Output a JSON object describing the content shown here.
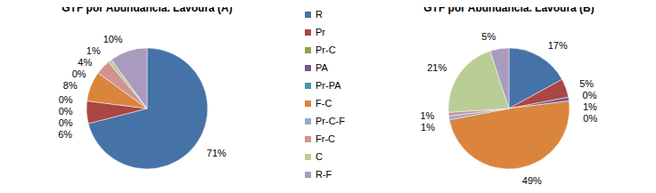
{
  "chart_data": [
    {
      "type": "pie",
      "title": "GTF por Abundância. Lavoura (A)",
      "categories": [
        "R",
        "Pr",
        "Pr-C",
        "PA",
        "Pr-PA",
        "F-C",
        "Pr-C-F",
        "Fr-C",
        "C",
        "R-F"
      ],
      "values": [
        71,
        6,
        0,
        0,
        0,
        8,
        0,
        4,
        1,
        10
      ],
      "value_labels": [
        "71%",
        "6%",
        "0%",
        "0%",
        "0%",
        "8%",
        "0%",
        "4%",
        "1%",
        "10%"
      ],
      "colors": [
        "#4572a7",
        "#aa4643",
        "#89a54e",
        "#71588f",
        "#4198af",
        "#db843d",
        "#93a9cf",
        "#d19392",
        "#b9cd96",
        "#a99bbd"
      ],
      "data_labels": true,
      "legend": "right"
    },
    {
      "type": "pie",
      "title": "GTF por Abundância. Lavoura (B)",
      "categories": [
        "R",
        "Pr",
        "Pr-C",
        "PA",
        "Pr-PA",
        "F-C",
        "Pr-C-F",
        "Fr-C",
        "C",
        "R-F"
      ],
      "values": [
        17,
        5,
        0,
        1,
        0,
        49,
        1,
        1,
        21,
        5
      ],
      "value_labels": [
        "17%",
        "5%",
        "0%",
        "1%",
        "0%",
        "49%",
        "1%",
        "1%",
        "21%",
        "5%"
      ],
      "colors": [
        "#4572a7",
        "#aa4643",
        "#89a54e",
        "#71588f",
        "#4198af",
        "#db843d",
        "#93a9cf",
        "#d19392",
        "#b9cd96",
        "#a99bbd"
      ],
      "data_labels": true
    }
  ]
}
